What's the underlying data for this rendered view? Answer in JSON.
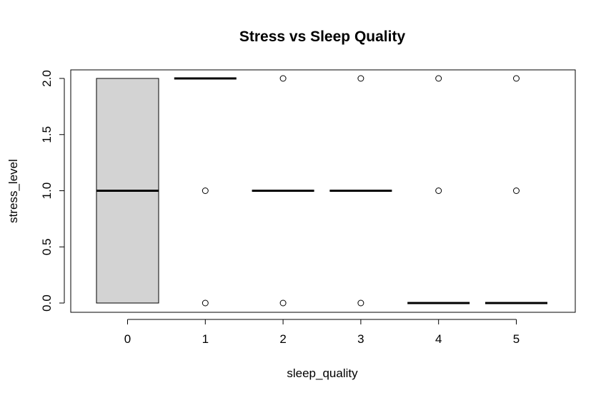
{
  "chart_data": {
    "type": "boxplot",
    "title": "Stress vs Sleep Quality",
    "xlabel": "sleep_quality",
    "ylabel": "stress_level",
    "categories": [
      "0",
      "1",
      "2",
      "3",
      "4",
      "5"
    ],
    "ylim": [
      0,
      2
    ],
    "y_ticks": [
      "0.0",
      "0.5",
      "1.0",
      "1.5",
      "2.0"
    ],
    "boxes": [
      {
        "category": "0",
        "q1": 0,
        "median": 1,
        "q3": 2,
        "whisker_low": 0,
        "whisker_high": 2,
        "outliers": []
      },
      {
        "category": "1",
        "q1": 2,
        "median": 2,
        "q3": 2,
        "whisker_low": 2,
        "whisker_high": 2,
        "outliers": [
          1,
          0
        ]
      },
      {
        "category": "2",
        "q1": 1,
        "median": 1,
        "q3": 1,
        "whisker_low": 1,
        "whisker_high": 1,
        "outliers": [
          2,
          0
        ]
      },
      {
        "category": "3",
        "q1": 1,
        "median": 1,
        "q3": 1,
        "whisker_low": 1,
        "whisker_high": 1,
        "outliers": [
          2,
          0
        ]
      },
      {
        "category": "4",
        "q1": 0,
        "median": 0,
        "q3": 0,
        "whisker_low": 0,
        "whisker_high": 0,
        "outliers": [
          2,
          1
        ]
      },
      {
        "category": "5",
        "q1": 0,
        "median": 0,
        "q3": 0,
        "whisker_low": 0,
        "whisker_high": 0,
        "outliers": [
          2,
          1
        ]
      }
    ],
    "box_fill": "#d3d3d3",
    "line_color": "#000000",
    "grid": false
  }
}
